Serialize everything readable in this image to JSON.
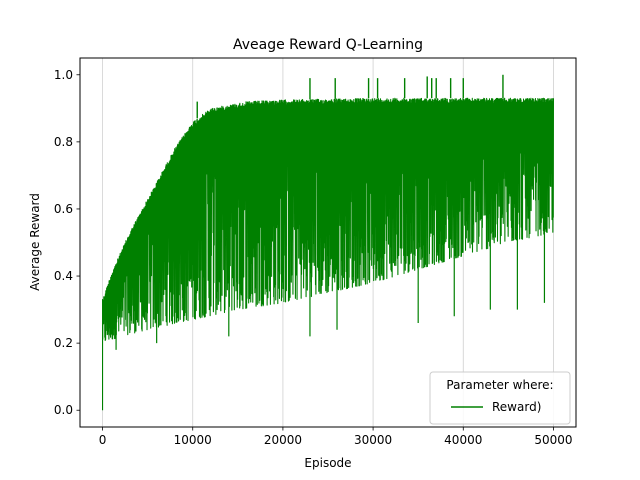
{
  "chart_data": {
    "type": "line",
    "title": "Aveage Reward Q-Learning",
    "xlabel": "Episode",
    "ylabel": "Average Reward",
    "xlim": [
      -2500,
      52500
    ],
    "ylim": [
      -0.05,
      1.05
    ],
    "x_ticks": [
      0,
      10000,
      20000,
      30000,
      40000,
      50000
    ],
    "y_ticks": [
      0.0,
      0.2,
      0.4,
      0.6,
      0.8,
      1.0
    ],
    "grid": "vertical",
    "legend": {
      "title": "Parameter where:",
      "placement": "lower-right"
    },
    "series": [
      {
        "name": "Reward)",
        "color": "#008000",
        "x_range": [
          0,
          50000
        ],
        "upper_envelope": [
          [
            0,
            0.33
          ],
          [
            1000,
            0.41
          ],
          [
            2000,
            0.47
          ],
          [
            3000,
            0.53
          ],
          [
            4000,
            0.58
          ],
          [
            5000,
            0.63
          ],
          [
            6000,
            0.68
          ],
          [
            7000,
            0.73
          ],
          [
            8000,
            0.78
          ],
          [
            9000,
            0.82
          ],
          [
            10000,
            0.86
          ],
          [
            11000,
            0.88
          ],
          [
            12000,
            0.9
          ],
          [
            14000,
            0.91
          ],
          [
            16000,
            0.92
          ],
          [
            20000,
            0.925
          ],
          [
            30000,
            0.93
          ],
          [
            50000,
            0.93
          ]
        ],
        "lower_envelope": [
          [
            0,
            0.2
          ],
          [
            2000,
            0.22
          ],
          [
            5000,
            0.24
          ],
          [
            10000,
            0.27
          ],
          [
            15000,
            0.3
          ],
          [
            20000,
            0.32
          ],
          [
            25000,
            0.35
          ],
          [
            30000,
            0.38
          ],
          [
            35000,
            0.42
          ],
          [
            40000,
            0.46
          ],
          [
            45000,
            0.5
          ],
          [
            50000,
            0.53
          ]
        ],
        "lower_outliers": [
          [
            1500,
            0.18
          ],
          [
            6000,
            0.2
          ],
          [
            14000,
            0.22
          ],
          [
            23000,
            0.22
          ],
          [
            26000,
            0.24
          ],
          [
            35000,
            0.26
          ],
          [
            39000,
            0.28
          ],
          [
            43000,
            0.3
          ],
          [
            46000,
            0.3
          ],
          [
            49000,
            0.32
          ]
        ],
        "upper_spikes": [
          [
            10500,
            0.92
          ],
          [
            23000,
            0.99
          ],
          [
            25800,
            0.99
          ],
          [
            29500,
            0.99
          ],
          [
            30500,
            0.99
          ],
          [
            33500,
            0.99
          ],
          [
            36000,
            0.995
          ],
          [
            36500,
            0.99
          ],
          [
            37000,
            0.99
          ],
          [
            38600,
            0.99
          ],
          [
            40000,
            0.99
          ],
          [
            44400,
            1.0
          ]
        ],
        "start_values": [
          [
            0,
            0.0
          ],
          [
            0,
            0.33
          ]
        ],
        "end_value": [
          50000,
          0.93
        ]
      }
    ]
  }
}
